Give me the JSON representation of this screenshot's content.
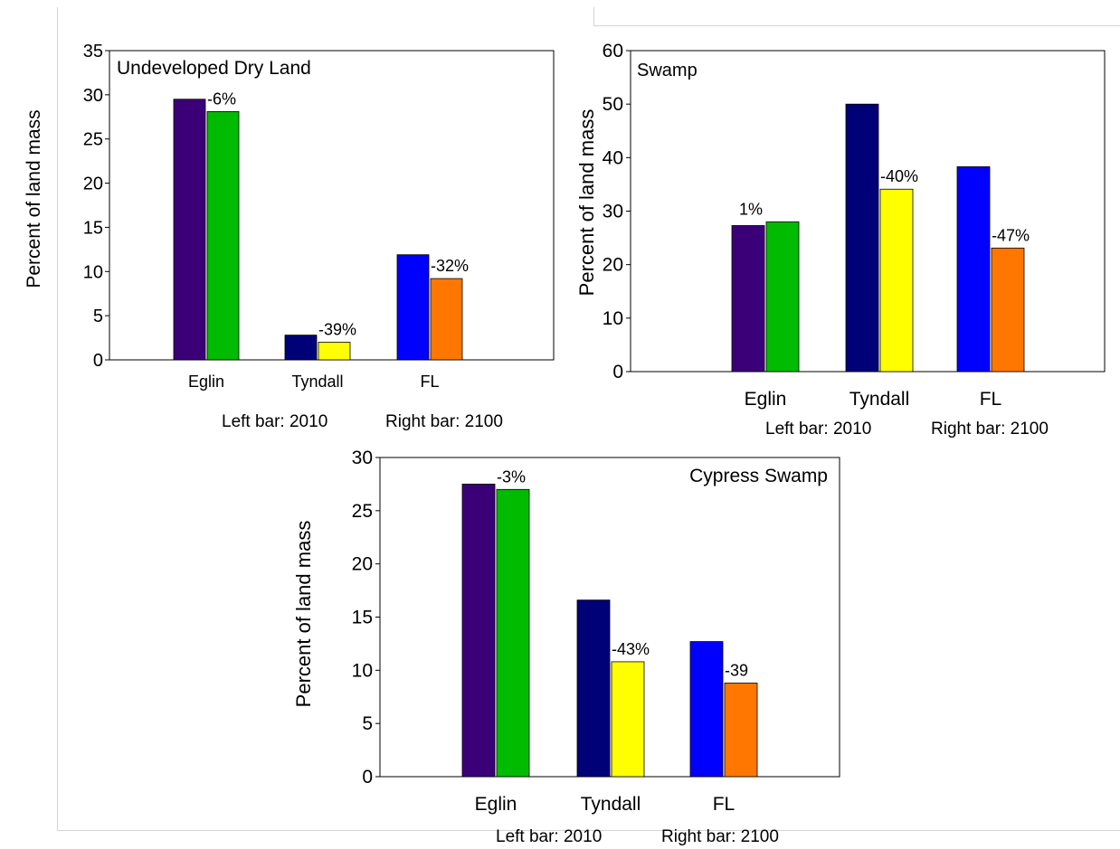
{
  "legend_note": {
    "left": "Left bar: 2010",
    "right": "Right bar: 2100"
  },
  "chart_data": [
    {
      "type": "bar",
      "title": "Undeveloped Dry Land",
      "ylabel": "Percent of land mass",
      "xlabel": "",
      "ylim": [
        0,
        35
      ],
      "yticks": [
        0,
        5,
        10,
        15,
        20,
        25,
        30,
        35
      ],
      "categories": [
        "Eglin",
        "Tyndall",
        "FL"
      ],
      "series": [
        {
          "values": [
            29.5,
            2.8,
            11.9
          ]
        },
        {
          "values": [
            28.1,
            2.0,
            9.2
          ]
        }
      ],
      "colors": [
        [
          "#3b0077",
          "#00bb00"
        ],
        [
          "#000077",
          "#ffff00"
        ],
        [
          "#0000ff",
          "#ff7700"
        ]
      ],
      "annotations": [
        "-6%",
        "-39%",
        "-32%"
      ],
      "grid": false,
      "title_position": "top-left"
    },
    {
      "type": "bar",
      "title": "Swamp",
      "ylabel": "Percent of land mass",
      "xlabel": "",
      "ylim": [
        0,
        60
      ],
      "yticks": [
        0,
        10,
        20,
        30,
        40,
        50,
        60
      ],
      "categories": [
        "Eglin",
        "Tyndall",
        "FL"
      ],
      "series": [
        {
          "values": [
            27.3,
            50.0,
            38.3
          ]
        },
        {
          "values": [
            28.0,
            34.1,
            23.1
          ]
        }
      ],
      "colors": [
        [
          "#3b0077",
          "#00bb00"
        ],
        [
          "#000077",
          "#ffff00"
        ],
        [
          "#0000ff",
          "#ff7700"
        ]
      ],
      "annotations": [
        "1%",
        "-40%",
        "-47%"
      ],
      "grid": false,
      "title_position": "top-left"
    },
    {
      "type": "bar",
      "title": "Cypress Swamp",
      "ylabel": "Percent of land mass",
      "xlabel": "",
      "ylim": [
        0,
        30
      ],
      "yticks": [
        0,
        5,
        10,
        15,
        20,
        25,
        30
      ],
      "categories": [
        "Eglin",
        "Tyndall",
        "FL"
      ],
      "series": [
        {
          "values": [
            27.5,
            16.6,
            12.7
          ]
        },
        {
          "values": [
            27.0,
            10.8,
            8.8
          ]
        }
      ],
      "colors": [
        [
          "#3b0077",
          "#00bb00"
        ],
        [
          "#000077",
          "#ffff00"
        ],
        [
          "#0000ff",
          "#ff7700"
        ]
      ],
      "annotations": [
        "-3%",
        "-43%",
        "-39"
      ],
      "grid": false,
      "title_position": "top-right"
    }
  ]
}
